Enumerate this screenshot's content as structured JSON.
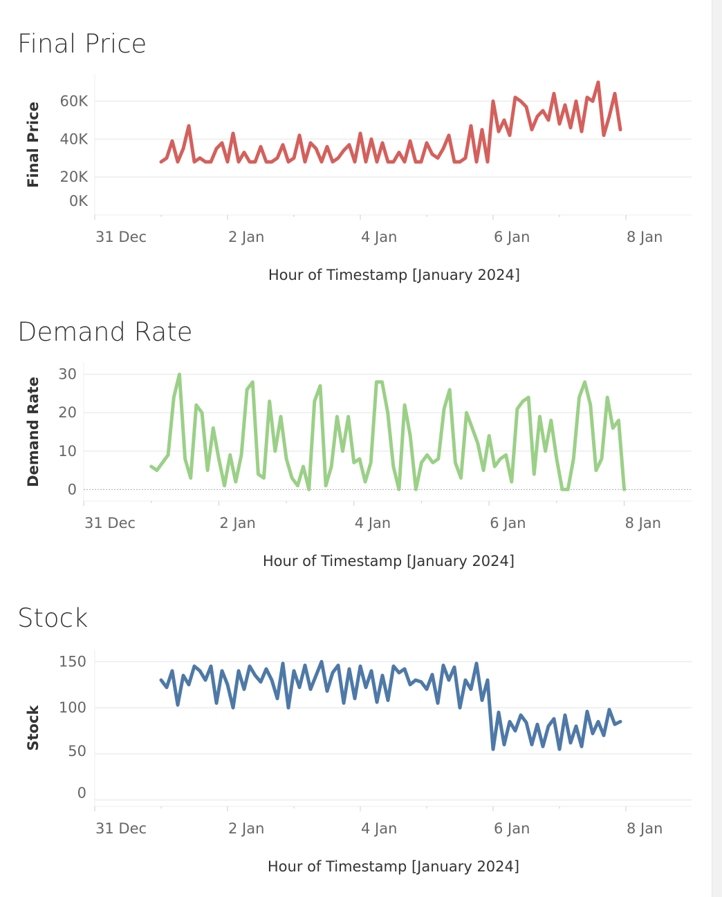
{
  "chart_data": [
    {
      "type": "line",
      "title": "Final Price",
      "ylabel": "Final Price",
      "xlabel": "Hour of Timestamp [January 2024]",
      "color": "#d4605c",
      "x_unit": "hours since 31 Dec 2023 00:00, 2-hour steps starting 1 Jan 00:00",
      "x_start": 24,
      "x_step": 2,
      "xlim": [
        0,
        216
      ],
      "ylim": [
        0,
        74000
      ],
      "yticks": [
        {
          "v": 0,
          "label": "0K"
        },
        {
          "v": 20000,
          "label": "20K"
        },
        {
          "v": 40000,
          "label": "40K"
        },
        {
          "v": 60000,
          "label": "60K"
        }
      ],
      "xticks": [
        {
          "v": 0,
          "label": "31 Dec"
        },
        {
          "v": 48,
          "label": "2 Jan"
        },
        {
          "v": 96,
          "label": "4 Jan"
        },
        {
          "v": 144,
          "label": "6 Jan"
        },
        {
          "v": 192,
          "label": "8 Jan"
        }
      ],
      "values": [
        28000,
        30000,
        39000,
        28000,
        35000,
        47000,
        28000,
        30000,
        28000,
        28000,
        35000,
        38000,
        28000,
        43000,
        28000,
        33000,
        28000,
        28000,
        36000,
        28000,
        28000,
        30000,
        37000,
        28000,
        30000,
        42000,
        28000,
        38000,
        35000,
        28000,
        36000,
        28000,
        30000,
        34000,
        37000,
        28000,
        43000,
        28000,
        40000,
        28000,
        38000,
        28000,
        28000,
        33000,
        28000,
        39000,
        28000,
        28000,
        38000,
        32000,
        30000,
        35000,
        42000,
        28000,
        28000,
        30000,
        47000,
        28000,
        45000,
        28000,
        60000,
        44000,
        50000,
        42000,
        62000,
        60000,
        57000,
        45000,
        52000,
        55000,
        50000,
        64000,
        48000,
        58000,
        46000,
        60000,
        44000,
        62000,
        60000,
        70000,
        42000,
        52000,
        64000,
        45000
      ]
    },
    {
      "type": "line",
      "title": "Demand Rate",
      "ylabel": "Demand Rate",
      "xlabel": "Hour of Timestamp [January 2024]",
      "color": "#9bd087",
      "x_start": 24,
      "x_step": 2,
      "xlim": [
        0,
        216
      ],
      "ylim": [
        -3,
        33
      ],
      "yticks": [
        {
          "v": 0,
          "label": "0"
        },
        {
          "v": 10,
          "label": "10"
        },
        {
          "v": 20,
          "label": "20"
        },
        {
          "v": 30,
          "label": "30"
        }
      ],
      "xticks": [
        {
          "v": 0,
          "label": "31 Dec"
        },
        {
          "v": 48,
          "label": "2 Jan"
        },
        {
          "v": 96,
          "label": "4 Jan"
        },
        {
          "v": 144,
          "label": "6 Jan"
        },
        {
          "v": 192,
          "label": "8 Jan"
        }
      ],
      "values": [
        6,
        5,
        7,
        9,
        24,
        30,
        8,
        3,
        22,
        20,
        5,
        16,
        8,
        1,
        9,
        2,
        9,
        26,
        28,
        4,
        3,
        23,
        10,
        19,
        8,
        3,
        1,
        6,
        0,
        23,
        27,
        1,
        6,
        19,
        10,
        19,
        7,
        8,
        2,
        7,
        28,
        28,
        20,
        6,
        0,
        22,
        14,
        0,
        7,
        9,
        7,
        8,
        21,
        26,
        7,
        3,
        20,
        16,
        12,
        5,
        14,
        6,
        8,
        9,
        2,
        21,
        23,
        24,
        4,
        19,
        10,
        18,
        8,
        0,
        0,
        8,
        24,
        28,
        22,
        5,
        8,
        24,
        16,
        18,
        0
      ]
    },
    {
      "type": "line",
      "title": "Stock",
      "ylabel": "Stock",
      "xlabel": "Hour of Timestamp [January 2024]",
      "color": "#4e79a7",
      "x_start": 24,
      "x_step": 2,
      "xlim": [
        0,
        216
      ],
      "ylim": [
        -7,
        163
      ],
      "yticks": [
        {
          "v": 0,
          "label": "0"
        },
        {
          "v": 50,
          "label": "50"
        },
        {
          "v": 100,
          "label": "100"
        },
        {
          "v": 150,
          "label": "150"
        }
      ],
      "xticks": [
        {
          "v": 0,
          "label": "31 Dec"
        },
        {
          "v": 48,
          "label": "2 Jan"
        },
        {
          "v": 96,
          "label": "4 Jan"
        },
        {
          "v": 144,
          "label": "6 Jan"
        },
        {
          "v": 192,
          "label": "8 Jan"
        }
      ],
      "values": [
        130,
        122,
        140,
        103,
        135,
        125,
        145,
        140,
        130,
        145,
        105,
        140,
        125,
        100,
        140,
        120,
        145,
        135,
        128,
        142,
        130,
        110,
        148,
        100,
        140,
        122,
        146,
        120,
        135,
        150,
        118,
        138,
        146,
        105,
        142,
        110,
        145,
        122,
        140,
        106,
        135,
        108,
        145,
        138,
        142,
        125,
        130,
        128,
        120,
        136,
        105,
        146,
        130,
        144,
        100,
        130,
        120,
        148,
        108,
        130,
        55,
        95,
        60,
        85,
        75,
        92,
        84,
        60,
        82,
        58,
        80,
        88,
        55,
        92,
        62,
        80,
        58,
        96,
        72,
        85,
        70,
        98,
        82,
        85
      ]
    }
  ]
}
